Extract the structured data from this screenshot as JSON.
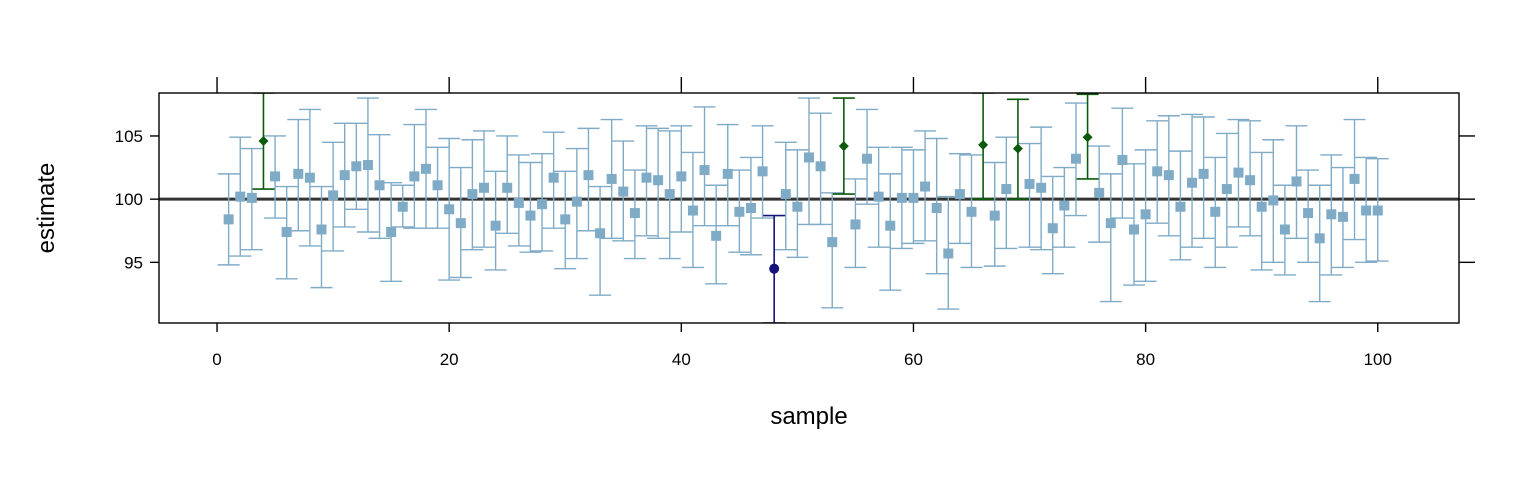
{
  "chart_data": {
    "type": "scatter",
    "title": "",
    "xlabel": "sample",
    "ylabel": "estimate",
    "xlim": [
      -5,
      107
    ],
    "ylim": [
      90.2,
      108.4
    ],
    "xticks": [
      "0",
      "20",
      "40",
      "60",
      "80",
      "100"
    ],
    "xtick_values": [
      0,
      20,
      40,
      60,
      80,
      100
    ],
    "yticks": [
      "95",
      "100",
      "105"
    ],
    "ytick_values": [
      95,
      100,
      105
    ],
    "reference_line": 100,
    "colors": {
      "normal": "#7fabc6",
      "high": "#0b5a0b",
      "low": "#14147a",
      "reference": "#333333"
    },
    "series": [
      {
        "kind": "normal",
        "x": [
          1,
          2,
          3,
          5,
          6,
          7,
          8,
          9,
          10,
          11,
          12,
          13,
          14,
          15,
          16,
          17,
          18,
          19,
          20,
          21,
          22,
          23,
          24,
          25,
          26,
          27,
          28,
          29,
          30,
          31,
          32,
          33,
          34,
          35,
          36,
          37,
          38,
          39,
          40,
          41,
          42,
          43,
          44,
          45,
          46,
          47,
          49,
          50,
          51,
          52,
          53,
          55,
          56,
          57,
          58,
          59,
          60,
          61,
          62,
          63,
          64,
          65,
          67,
          68,
          70,
          71,
          72,
          73,
          74,
          76,
          77,
          78,
          79,
          80,
          81,
          82,
          83,
          84,
          85,
          86,
          87,
          88,
          89,
          90,
          91,
          92,
          93,
          94,
          95,
          96,
          97,
          98,
          99,
          100
        ],
        "y": [
          98.4,
          100.2,
          100.1,
          101.8,
          97.4,
          102.0,
          101.7,
          97.6,
          100.3,
          101.9,
          102.6,
          102.7,
          101.1,
          97.4,
          99.4,
          101.8,
          102.4,
          101.1,
          99.2,
          98.1,
          100.4,
          100.9,
          97.9,
          100.9,
          99.7,
          98.7,
          99.6,
          101.7,
          98.4,
          99.8,
          101.9,
          97.3,
          101.6,
          100.6,
          98.9,
          101.7,
          101.5,
          100.4,
          101.8,
          99.1,
          102.3,
          97.1,
          102.0,
          99.0,
          99.3,
          102.2,
          100.4,
          99.4,
          103.3,
          102.6,
          96.6,
          98.0,
          103.2,
          100.2,
          97.9,
          100.1,
          100.1,
          101.0,
          99.3,
          95.7,
          100.4,
          99.0,
          98.7,
          100.8,
          101.2,
          100.9,
          97.7,
          99.5,
          103.2,
          100.5,
          98.1,
          103.1,
          97.6,
          98.8,
          102.2,
          101.9,
          99.4,
          101.3,
          102.0,
          99.0,
          100.8,
          102.1,
          101.5,
          99.4,
          99.9,
          97.6,
          101.4,
          98.9,
          96.9,
          98.8,
          98.6,
          101.6,
          99.1,
          99.1
        ],
        "lower": [
          94.8,
          95.5,
          96.0,
          98.5,
          93.7,
          97.5,
          96.3,
          93.0,
          95.9,
          97.8,
          99.2,
          97.4,
          96.9,
          93.5,
          97.8,
          97.7,
          97.7,
          97.7,
          93.6,
          93.8,
          96.0,
          96.2,
          94.4,
          97.3,
          96.3,
          95.8,
          95.9,
          97.7,
          94.5,
          95.3,
          97.5,
          92.4,
          96.9,
          96.7,
          95.3,
          97.1,
          96.9,
          95.3,
          97.4,
          94.6,
          97.9,
          93.3,
          97.9,
          95.8,
          95.6,
          98.5,
          96.0,
          95.4,
          98.0,
          98.0,
          91.4,
          94.6,
          99.6,
          96.2,
          92.8,
          96.1,
          96.5,
          96.7,
          94.1,
          91.3,
          96.5,
          94.6,
          94.7,
          96.1,
          96.2,
          96.0,
          94.1,
          96.2,
          98.7,
          96.6,
          91.9,
          98.5,
          93.2,
          93.5,
          98.1,
          97.1,
          95.2,
          96.2,
          96.9,
          94.6,
          96.2,
          97.8,
          97.1,
          94.4,
          95.0,
          94.0,
          96.9,
          95.0,
          91.9,
          94.0,
          94.6,
          96.8,
          95.0,
          95.1
        ],
        "upper": [
          102.0,
          104.9,
          104.0,
          105.0,
          101.0,
          106.3,
          107.1,
          101.0,
          104.5,
          106.0,
          106.0,
          108.0,
          105.1,
          101.3,
          101.1,
          105.9,
          107.1,
          104.1,
          104.8,
          102.5,
          104.7,
          105.4,
          102.2,
          105.0,
          103.5,
          102.9,
          103.6,
          105.3,
          102.2,
          104.0,
          105.6,
          101.0,
          106.3,
          104.6,
          102.3,
          105.8,
          105.6,
          105.4,
          105.8,
          103.7,
          107.3,
          101.1,
          105.9,
          102.3,
          103.3,
          105.8,
          104.5,
          103.9,
          108.0,
          106.8,
          100.5,
          101.6,
          107.1,
          104.1,
          102.0,
          104.1,
          103.9,
          105.4,
          104.8,
          100.2,
          103.6,
          103.5,
          102.9,
          104.9,
          104.4,
          105.7,
          101.8,
          102.5,
          107.6,
          104.2,
          102.0,
          107.2,
          102.8,
          103.9,
          106.2,
          106.6,
          103.8,
          106.7,
          106.5,
          103.3,
          105.2,
          106.3,
          106.2,
          103.7,
          104.7,
          101.1,
          105.8,
          102.3,
          101.1,
          103.5,
          102.5,
          106.3,
          103.3,
          103.2
        ]
      },
      {
        "kind": "high",
        "x": [
          4,
          54,
          66,
          69,
          75
        ],
        "y": [
          104.6,
          104.2,
          104.3,
          104.0,
          104.9
        ],
        "lower": [
          100.8,
          100.4,
          100.0,
          100.0,
          101.6
        ],
        "upper": [
          108.4,
          108.0,
          108.4,
          107.9,
          108.3
        ]
      },
      {
        "kind": "low",
        "x": [
          48
        ],
        "y": [
          94.5
        ],
        "lower": [
          90.2
        ],
        "upper": [
          98.7
        ]
      }
    ]
  }
}
